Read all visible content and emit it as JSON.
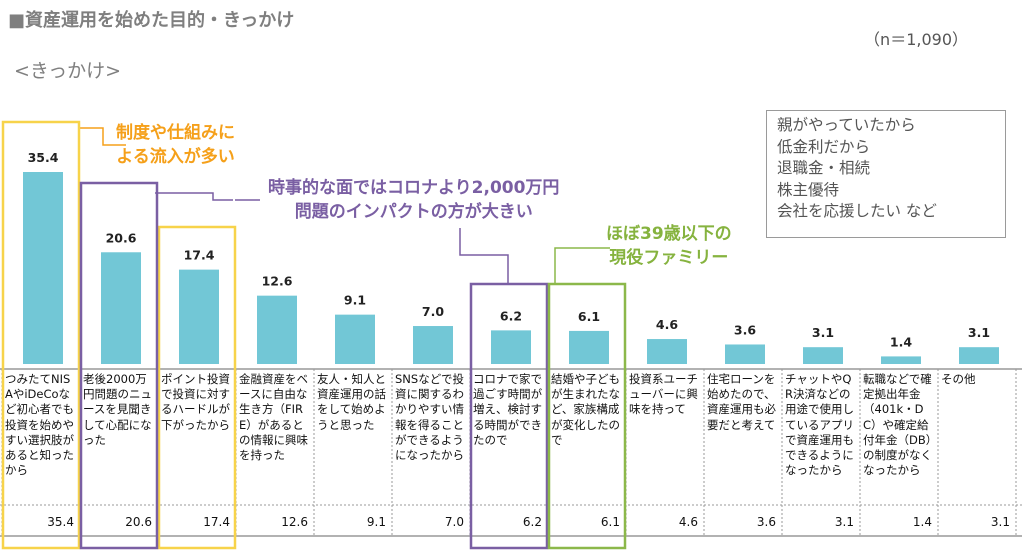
{
  "title": "■資産運用を始めた目的・きっかけ",
  "subtitle": "<きっかけ>",
  "sample_size": "（n＝1,090）",
  "callouts": {
    "c1": [
      "制度や仕組みに",
      "よる流入が多い"
    ],
    "c2": [
      "時事的な面ではコロナより2,000万円",
      "問題のインパクトの方が大きい"
    ],
    "c3": [
      "ほぼ39歳以下の",
      "現役ファミリー"
    ]
  },
  "others_box": [
    "親がやっていたから",
    "低金利だから",
    "退職金・相続",
    "株主優待",
    "会社を応援したい など"
  ],
  "colors": {
    "bar": "#72c7d6",
    "highlight_yellow": "#f7d34a",
    "highlight_purple": "#7a5fa3",
    "highlight_green": "#8cb84a",
    "callout_orange": "#f5a01a"
  },
  "chart_data": {
    "type": "bar",
    "categories": [
      "つみたてNISAやiDeCoなど初心者でも投資を始めやすい選択肢があると知ったから",
      "老後2000万円問題のニュースを見聞きして心配になった",
      "ポイント投資で投資に対するハードルが下がったから",
      "金融資産をベースに自由な生き方（FIRE）があるとの情報に興味を持った",
      "友人・知人と資産運用の話をして始めようと思った",
      "SNSなどで投資に関するわかりやすい情報を得ることができるようになったから",
      "コロナで家で過ごす時間が増え、検討する時間ができたので",
      "結婚や子どもが生まれたなど、家族構成が変化したので",
      "投資系ユーチューバーに興味を持って",
      "住宅ローンを始めたので、資産運用も必要だと考えて",
      "チャットやQR決済などの用途で使用しているアプリで資産運用もできるようになったから",
      "転職などで確定拠出年金（401k・DC）や確定給付年金（DB）の制度がなくなったから",
      "その他"
    ],
    "values": [
      35.4,
      20.6,
      17.4,
      12.6,
      9.1,
      7.0,
      6.2,
      6.1,
      4.6,
      3.6,
      3.1,
      1.4,
      3.1
    ],
    "value_labels": [
      "35.4",
      "20.6",
      "17.4",
      "12.6",
      "9.1",
      "7.0",
      "6.2",
      "6.1",
      "4.6",
      "3.6",
      "3.1",
      "1.4",
      "3.1"
    ],
    "highlights": {
      "yellow": [
        0,
        2
      ],
      "purple": [
        1,
        6
      ],
      "green": [
        7
      ]
    },
    "ylim": [
      0,
      40
    ],
    "grid": false,
    "legend": "none"
  }
}
